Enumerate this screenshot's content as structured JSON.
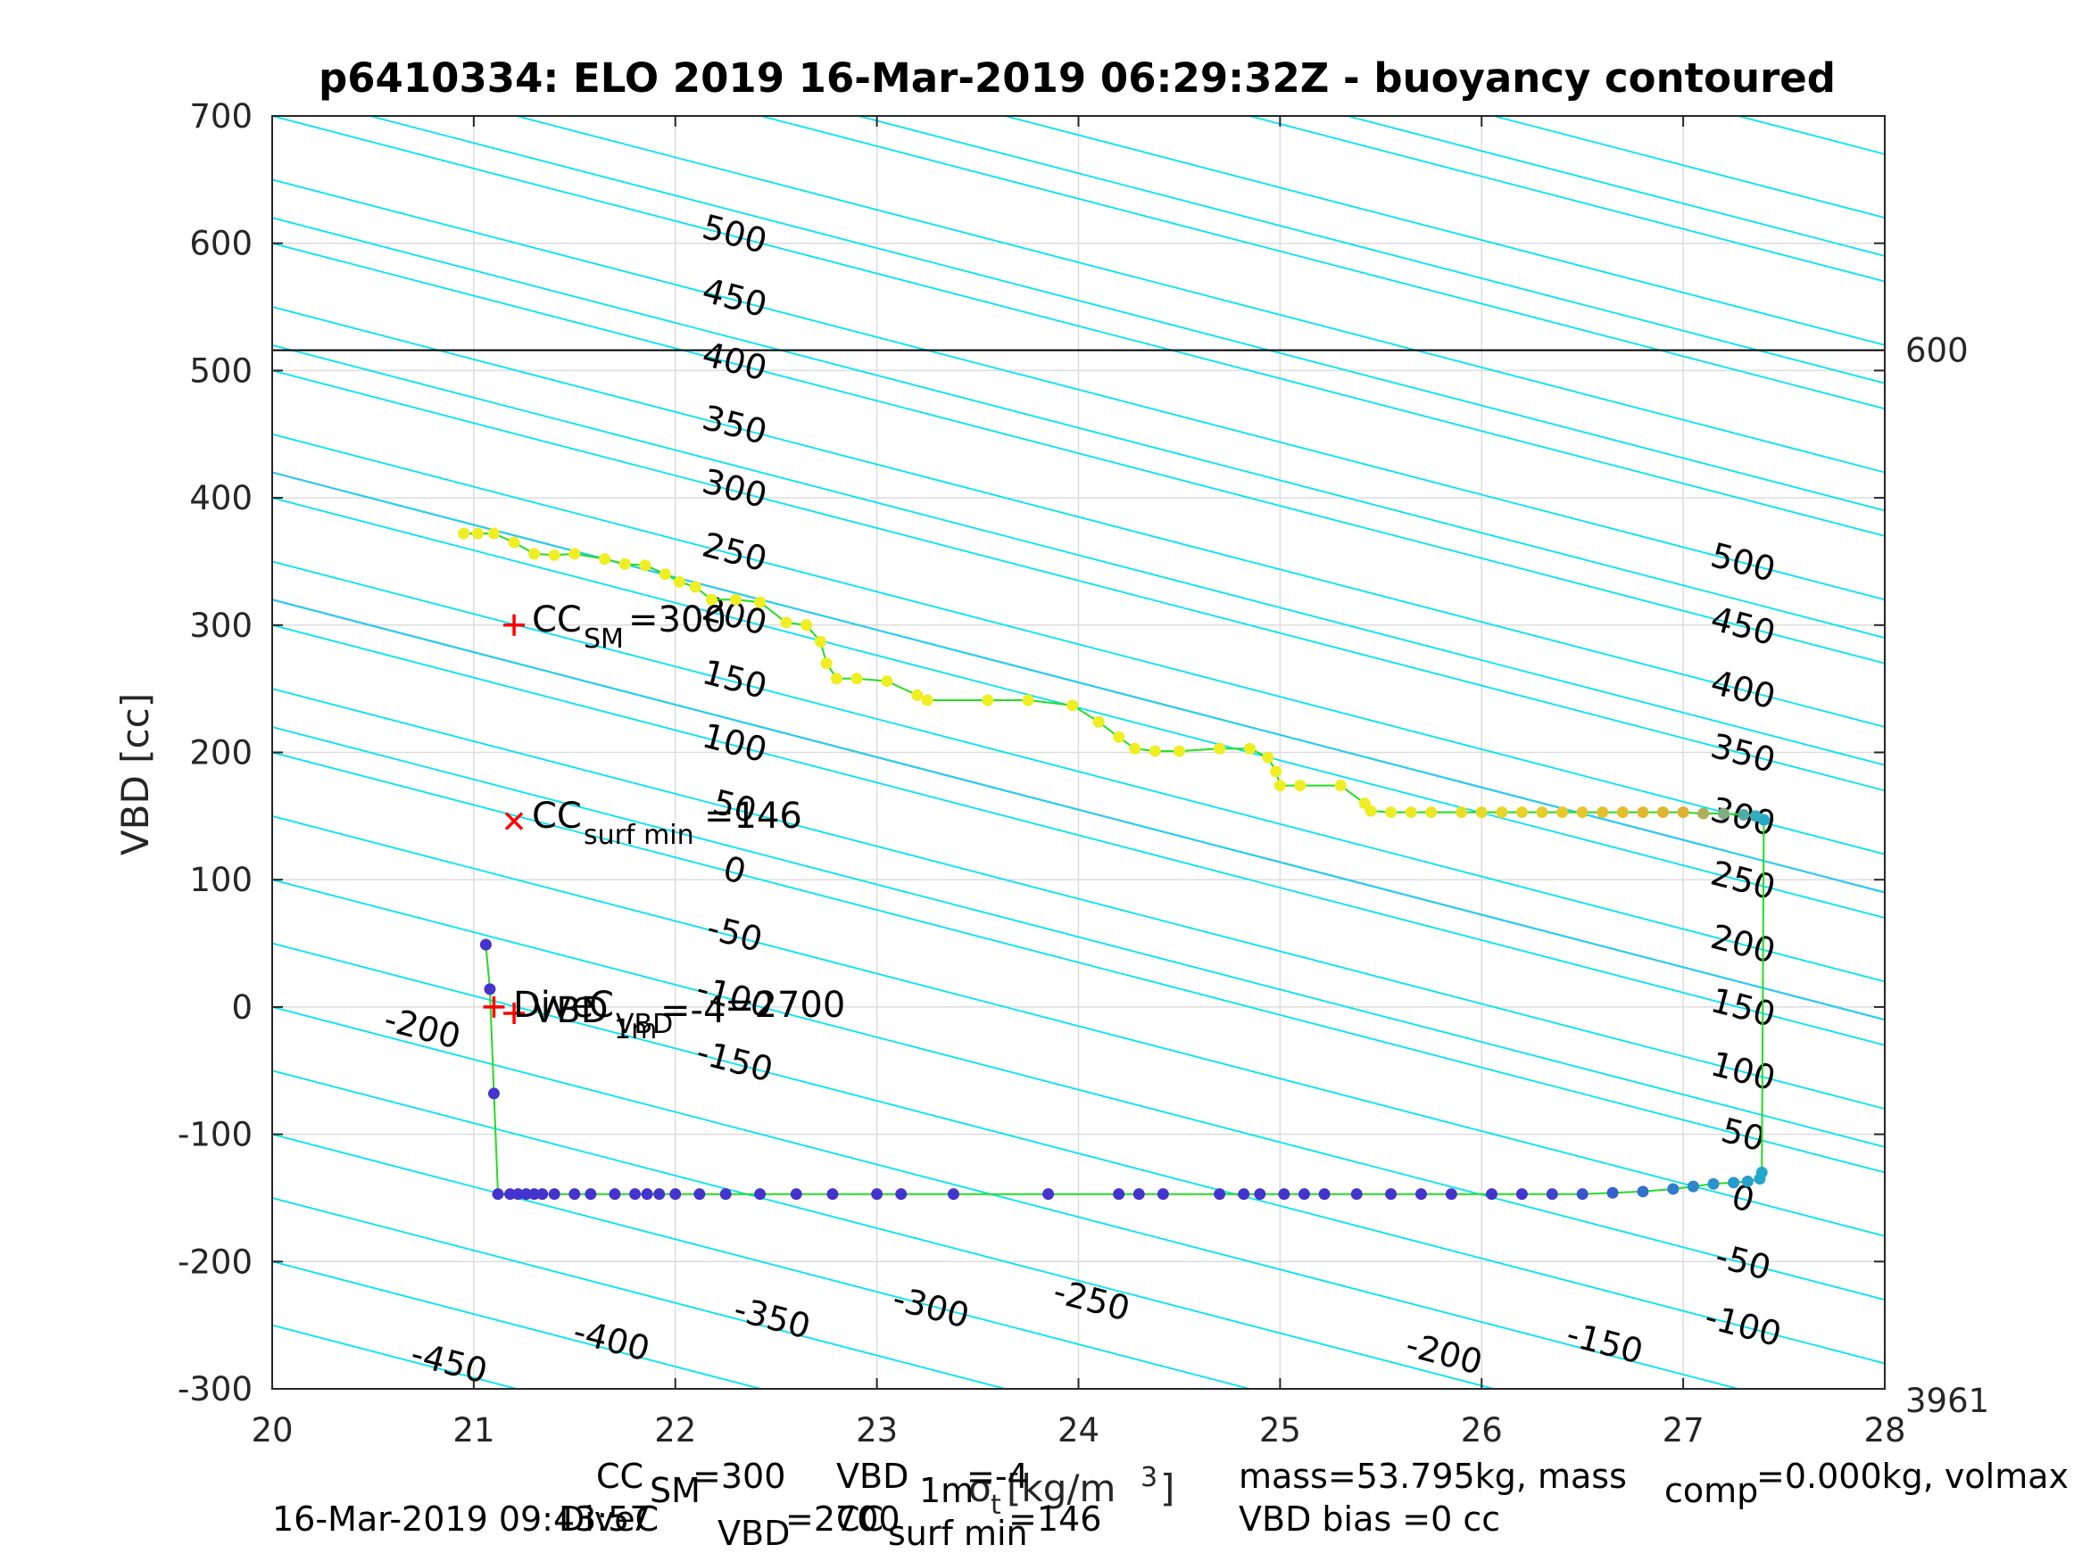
{
  "chart_data": {
    "type": "scatter",
    "title": "p6410334: ELO 2019 16-Mar-2019 06:29:32Z - buoyancy contoured",
    "ylabel": "VBD [cc]",
    "xlabel_parts": [
      "σ",
      "t",
      " [kg/m",
      "3",
      "]"
    ],
    "xlim": [
      20,
      28
    ],
    "ylim": [
      -300,
      700
    ],
    "x_ticks": [
      "20",
      "21",
      "22",
      "23",
      "24",
      "25",
      "26",
      "27",
      "28"
    ],
    "y_ticks": [
      "-300",
      "-200",
      "-100",
      "0",
      "100",
      "200",
      "300",
      "400",
      "500",
      "600",
      "700"
    ],
    "grid": true,
    "colors": {
      "contour": "#00e5ee",
      "neutral": "#0000cc",
      "magenta": "#dd00dd",
      "trace": "#22dd22",
      "reference": "#000000",
      "marker": "#ff0000",
      "dive_low": "#4433cc",
      "dive_mid": "#22aacc",
      "climb_mid": "#e0b030",
      "climb_high": "#eeee22"
    },
    "contour_labels_left": [
      "500",
      "450",
      "400",
      "350",
      "300",
      "250",
      "200",
      "150",
      "100",
      "50",
      "0",
      "-50",
      "-100",
      "-150",
      "-200"
    ],
    "contour_labels_right": [
      "500",
      "450",
      "400",
      "350",
      "300",
      "250",
      "200",
      "150",
      "100",
      "50",
      "0",
      "-50",
      "-100"
    ],
    "contour_labels_bottom": [
      "-450",
      "-400",
      "-350",
      "-300",
      "-250",
      "-200",
      "-150"
    ],
    "reference_line": {
      "y": 516,
      "label": "600"
    },
    "corner_label": "3961",
    "annotations": {
      "cc_sm": {
        "x": 21.2,
        "y": 300,
        "label": "CC",
        "sub": "SM",
        "value": "=300"
      },
      "cc_surf_min": {
        "x": 21.2,
        "y": 146,
        "label": "CC",
        "sub": "surf min",
        "value": "=146"
      },
      "dive": {
        "x": 21.1,
        "y": 0,
        "label": "Dive",
        "value": "=2700"
      },
      "vbd_1m": {
        "x": 21.2,
        "y": -5,
        "label": "VBD",
        "sub": "1m",
        "value": "=-4"
      },
      "c_vbd": {
        "label": "C",
        "sub": "VBD"
      }
    },
    "series": [
      {
        "name": "dive",
        "points": [
          [
            21.06,
            49
          ],
          [
            21.08,
            14
          ],
          [
            21.1,
            -68
          ],
          [
            21.12,
            -147
          ],
          [
            21.18,
            -147
          ],
          [
            21.22,
            -147
          ],
          [
            21.26,
            -147
          ],
          [
            21.3,
            -147
          ],
          [
            21.34,
            -147
          ],
          [
            21.4,
            -147
          ],
          [
            21.5,
            -147
          ],
          [
            21.58,
            -147
          ],
          [
            21.7,
            -147
          ],
          [
            21.8,
            -147
          ],
          [
            21.86,
            -147
          ],
          [
            21.92,
            -147
          ],
          [
            22.0,
            -147
          ],
          [
            22.12,
            -147
          ],
          [
            22.25,
            -147
          ],
          [
            22.42,
            -147
          ],
          [
            22.6,
            -147
          ],
          [
            22.78,
            -147
          ],
          [
            23.0,
            -147
          ],
          [
            23.12,
            -147
          ],
          [
            23.38,
            -147
          ],
          [
            23.85,
            -147
          ],
          [
            24.2,
            -147
          ],
          [
            24.3,
            -147
          ],
          [
            24.42,
            -147
          ],
          [
            24.7,
            -147
          ],
          [
            24.82,
            -147
          ],
          [
            24.9,
            -147
          ],
          [
            25.02,
            -147
          ],
          [
            25.12,
            -147
          ],
          [
            25.22,
            -147
          ],
          [
            25.38,
            -147
          ],
          [
            25.55,
            -147
          ],
          [
            25.7,
            -147
          ],
          [
            25.85,
            -147
          ],
          [
            26.05,
            -147
          ],
          [
            26.2,
            -147
          ],
          [
            26.35,
            -147
          ],
          [
            26.5,
            -147
          ],
          [
            26.65,
            -146
          ],
          [
            26.8,
            -145
          ],
          [
            26.95,
            -143
          ],
          [
            27.05,
            -141
          ],
          [
            27.15,
            -139
          ],
          [
            27.25,
            -138
          ],
          [
            27.32,
            -137
          ],
          [
            27.38,
            -135
          ],
          [
            27.39,
            -130
          ]
        ]
      },
      {
        "name": "climb",
        "points": [
          [
            27.4,
            147
          ],
          [
            27.36,
            150
          ],
          [
            27.3,
            151
          ],
          [
            27.2,
            152
          ],
          [
            27.1,
            152
          ],
          [
            27.0,
            153
          ],
          [
            26.9,
            153
          ],
          [
            26.8,
            153
          ],
          [
            26.7,
            153
          ],
          [
            26.6,
            153
          ],
          [
            26.5,
            153
          ],
          [
            26.4,
            153
          ],
          [
            26.3,
            153
          ],
          [
            26.2,
            153
          ],
          [
            26.1,
            153
          ],
          [
            26.0,
            153
          ],
          [
            25.9,
            153
          ],
          [
            25.75,
            153
          ],
          [
            25.65,
            153
          ],
          [
            25.55,
            153
          ],
          [
            25.45,
            154
          ],
          [
            25.42,
            160
          ],
          [
            25.3,
            174
          ],
          [
            25.1,
            174
          ],
          [
            25.0,
            174
          ],
          [
            24.98,
            185
          ],
          [
            24.94,
            196
          ],
          [
            24.85,
            203
          ],
          [
            24.7,
            203
          ],
          [
            24.5,
            201
          ],
          [
            24.38,
            201
          ],
          [
            24.28,
            203
          ],
          [
            24.2,
            212
          ],
          [
            24.1,
            224
          ],
          [
            23.97,
            237
          ],
          [
            23.75,
            241
          ],
          [
            23.55,
            241
          ],
          [
            23.25,
            241
          ],
          [
            23.2,
            245
          ],
          [
            23.05,
            256
          ],
          [
            22.9,
            258
          ],
          [
            22.8,
            258
          ],
          [
            22.75,
            270
          ],
          [
            22.72,
            287
          ],
          [
            22.65,
            300
          ],
          [
            22.55,
            302
          ],
          [
            22.42,
            318
          ],
          [
            22.3,
            320
          ],
          [
            22.18,
            320
          ],
          [
            22.1,
            330
          ],
          [
            22.02,
            334
          ],
          [
            21.95,
            340
          ],
          [
            21.85,
            347
          ],
          [
            21.75,
            348
          ],
          [
            21.65,
            352
          ],
          [
            21.5,
            356
          ],
          [
            21.4,
            355
          ],
          [
            21.3,
            356
          ],
          [
            21.2,
            365
          ],
          [
            21.1,
            372
          ],
          [
            21.02,
            372
          ],
          [
            20.95,
            372
          ]
        ]
      }
    ]
  },
  "footer": {
    "line1_left": {
      "label": "CC",
      "sub": "SM",
      "value": "=300"
    },
    "line1_mid": {
      "label": "VBD",
      "sub": "1m",
      "value": "=-4"
    },
    "line1_right": {
      "a": "mass=53.795kg, mass",
      "sub": "comp",
      "b": "=0.000kg, volmax"
    },
    "line2_date": "16-Mar-2019 09:43:57",
    "line2_dive": {
      "label": "DiveC",
      "sub": "VBD",
      "value": "=2700"
    },
    "line2_ccsurf": {
      "label": "CC",
      "sub": "surf min",
      "value": "=146"
    },
    "line2_right": "VBD bias =0 cc"
  }
}
